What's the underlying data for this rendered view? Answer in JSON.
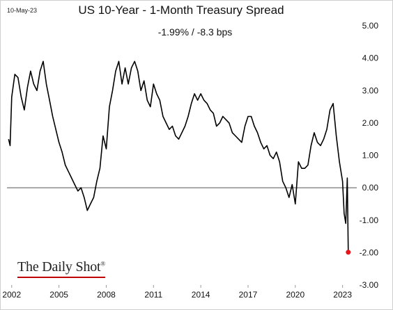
{
  "header": {
    "date": "10-May-23",
    "title": "US 10-Year - 1-Month Treasury Spread",
    "subtitle": "-1.99%  /  -8.3 bps"
  },
  "brand": {
    "name": "The Daily Shot",
    "mark": "®"
  },
  "colors": {
    "series": "#000000",
    "zero_line": "#555555",
    "marker": "#e8151b",
    "brand_underline": "#c00000"
  },
  "chart_data": {
    "type": "line",
    "title": "US 10-Year - 1-Month Treasury Spread",
    "xlabel": "",
    "ylabel": "",
    "x_ticks": [
      2002,
      2005,
      2008,
      2011,
      2014,
      2017,
      2020,
      2023
    ],
    "x_tick_labels": [
      "2002",
      "2005",
      "2008",
      "2011",
      "2014",
      "2017",
      "2020",
      "2023"
    ],
    "xlim": [
      2001.7,
      2023.9
    ],
    "ylim": [
      -3.0,
      5.0
    ],
    "y_ticks": [
      5,
      4,
      3,
      2,
      1,
      0,
      -1,
      -2,
      -3
    ],
    "y_tick_labels": [
      "5.00",
      "4.00",
      "3.00",
      "2.00",
      "1.00",
      "0.00",
      "-1.00",
      "-2.00",
      "-3.00"
    ],
    "y_axis_side": "right",
    "grid": false,
    "reference_line": 0,
    "series": [
      {
        "x": [
          2001.8,
          2001.9,
          2002.0,
          2002.2,
          2002.4,
          2002.6,
          2002.8,
          2003.0,
          2003.2,
          2003.4,
          2003.6,
          2003.8,
          2004.0,
          2004.2,
          2004.4,
          2004.6,
          2004.8,
          2005.0,
          2005.2,
          2005.4,
          2005.6,
          2005.8,
          2006.0,
          2006.2,
          2006.4,
          2006.6,
          2006.8,
          2007.0,
          2007.2,
          2007.4,
          2007.6,
          2007.8,
          2008.0,
          2008.2,
          2008.4,
          2008.6,
          2008.8,
          2009.0,
          2009.2,
          2009.4,
          2009.6,
          2009.8,
          2010.0,
          2010.2,
          2010.4,
          2010.6,
          2010.8,
          2011.0,
          2011.2,
          2011.4,
          2011.6,
          2011.8,
          2012.0,
          2012.2,
          2012.4,
          2012.6,
          2012.8,
          2013.0,
          2013.2,
          2013.4,
          2013.6,
          2013.8,
          2014.0,
          2014.2,
          2014.4,
          2014.6,
          2014.8,
          2015.0,
          2015.2,
          2015.4,
          2015.6,
          2015.8,
          2016.0,
          2016.2,
          2016.4,
          2016.6,
          2016.8,
          2017.0,
          2017.2,
          2017.4,
          2017.6,
          2017.8,
          2018.0,
          2018.2,
          2018.4,
          2018.6,
          2018.8,
          2019.0,
          2019.2,
          2019.4,
          2019.6,
          2019.8,
          2020.0,
          2020.2,
          2020.4,
          2020.6,
          2020.8,
          2021.0,
          2021.2,
          2021.4,
          2021.6,
          2021.8,
          2022.0,
          2022.2,
          2022.4,
          2022.6,
          2022.8,
          2023.0,
          2023.1,
          2023.2,
          2023.3,
          2023.36
        ],
        "y": [
          1.5,
          1.3,
          2.8,
          3.5,
          3.4,
          2.8,
          2.4,
          3.1,
          3.6,
          3.2,
          3.0,
          3.6,
          3.9,
          3.2,
          2.7,
          2.2,
          1.8,
          1.4,
          1.1,
          0.7,
          0.5,
          0.3,
          0.1,
          -0.1,
          0.0,
          -0.3,
          -0.7,
          -0.5,
          -0.3,
          0.2,
          0.6,
          1.6,
          1.2,
          2.5,
          3.0,
          3.6,
          3.9,
          3.2,
          3.7,
          3.2,
          3.7,
          3.9,
          3.6,
          3.0,
          3.3,
          2.7,
          2.5,
          3.2,
          2.9,
          2.7,
          2.2,
          2.0,
          1.8,
          1.9,
          1.6,
          1.5,
          1.7,
          1.9,
          2.2,
          2.6,
          2.9,
          2.7,
          2.9,
          2.7,
          2.6,
          2.4,
          2.3,
          1.9,
          2.0,
          2.2,
          2.1,
          2.0,
          1.7,
          1.6,
          1.5,
          1.4,
          1.9,
          2.2,
          2.2,
          1.9,
          1.7,
          1.4,
          1.2,
          1.3,
          1.0,
          0.9,
          1.1,
          0.8,
          0.2,
          0.0,
          -0.3,
          0.1,
          -0.5,
          0.8,
          0.6,
          0.6,
          0.7,
          1.3,
          1.7,
          1.4,
          1.3,
          1.5,
          1.8,
          2.4,
          2.6,
          1.6,
          0.8,
          0.2,
          -0.8,
          -1.1,
          0.3,
          -1.99
        ]
      }
    ],
    "last_point": {
      "x": 2023.36,
      "y": -1.99
    }
  }
}
